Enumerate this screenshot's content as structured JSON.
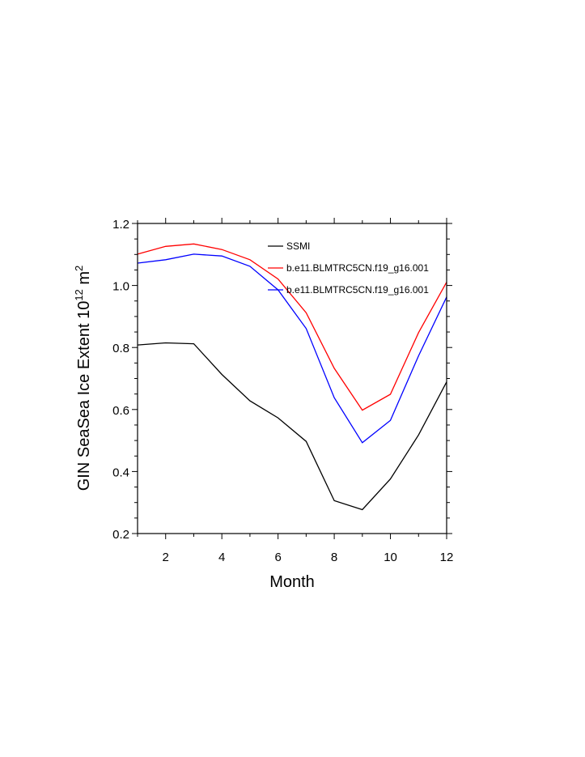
{
  "chart_data": {
    "type": "line",
    "title": "",
    "xlabel": "Month",
    "ylabel_main": "GIN SeaSea Ice Extent 10",
    "ylabel_exp1": "12",
    "ylabel_unit": " m",
    "ylabel_exp2": "2",
    "xlim": [
      1,
      12
    ],
    "ylim": [
      0.2,
      1.2
    ],
    "xticks": [
      2,
      4,
      6,
      8,
      10,
      12
    ],
    "yticks": [
      "0.2",
      "0.4",
      "0.6",
      "0.8",
      "1.0",
      "1.2"
    ],
    "legend_position": "top-right",
    "x": [
      1,
      2,
      3,
      4,
      5,
      6,
      7,
      8,
      9,
      10,
      11,
      12
    ],
    "series": [
      {
        "name": "SSMI",
        "color": "#000000",
        "values": [
          0.808,
          0.815,
          0.812,
          0.713,
          0.628,
          0.573,
          0.497,
          0.306,
          0.277,
          0.376,
          0.518,
          0.689
        ]
      },
      {
        "name": "b.e11.BLMTRC5CN.f19_g16.001",
        "color": "#ff0000",
        "values": [
          1.101,
          1.126,
          1.134,
          1.116,
          1.083,
          1.021,
          0.912,
          0.733,
          0.598,
          0.649,
          0.848,
          1.011
        ]
      },
      {
        "name": "b.e11.BLMTRC5CN.f19_g16.001",
        "color": "#0000ff",
        "values": [
          1.072,
          1.083,
          1.101,
          1.095,
          1.062,
          0.986,
          0.861,
          0.638,
          0.493,
          0.565,
          0.773,
          0.963
        ]
      }
    ]
  }
}
